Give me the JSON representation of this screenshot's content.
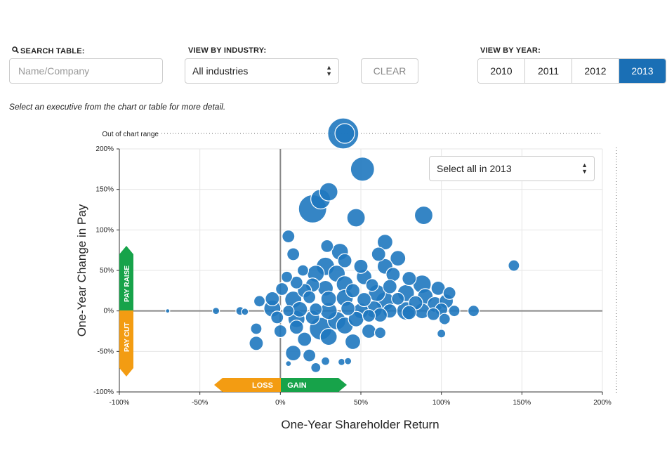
{
  "controls": {
    "search_label": "SEARCH TABLE:",
    "search_placeholder": "Name/Company",
    "industry_label": "VIEW BY INDUSTRY:",
    "industry_value": "All industries",
    "clear_label": "CLEAR",
    "year_label": "VIEW BY YEAR:",
    "years": [
      "2010",
      "2011",
      "2012",
      "2013"
    ],
    "active_year": "2013",
    "hint": "Select an executive from the chart or table for more detail.",
    "select_all_label": "Select all in 2013"
  },
  "colors": {
    "bubble": "#1f78bf",
    "bubble_stroke": "#ffffff",
    "raise": "#17a34a",
    "cut": "#f39c12",
    "active_year": "#1a6fb5"
  },
  "chart_data": {
    "type": "scatter",
    "title": "",
    "xlabel": "One-Year Shareholder Return",
    "ylabel": "One-Year Change in Pay",
    "xlim": [
      -100,
      200
    ],
    "ylim": [
      -100,
      200
    ],
    "x_ticks": [
      "-100%",
      "-50%",
      "0%",
      "50%",
      "100%",
      "150%",
      "200%"
    ],
    "y_ticks": [
      "-100%",
      "-50%",
      "0%",
      "50%",
      "100%",
      "150%",
      "200%"
    ],
    "grid": true,
    "out_of_range_label": "Out of chart range",
    "annotations": {
      "pay_raise": "PAY RAISE",
      "pay_cut": "PAY CUT",
      "loss": "LOSS",
      "gain": "GAIN"
    },
    "bubble_size_meaning": "relative size (unlabeled)",
    "points": [
      {
        "x": 39,
        "y": 222,
        "size": 22
      },
      {
        "x": 40,
        "y": 220,
        "size": 14
      },
      {
        "x": 51,
        "y": 175,
        "size": 17
      },
      {
        "x": 30,
        "y": 147,
        "size": 13
      },
      {
        "x": 20,
        "y": 126,
        "size": 20
      },
      {
        "x": 25,
        "y": 138,
        "size": 14
      },
      {
        "x": 47,
        "y": 115,
        "size": 13
      },
      {
        "x": 89,
        "y": 118,
        "size": 13
      },
      {
        "x": 5,
        "y": 92,
        "size": 9
      },
      {
        "x": 65,
        "y": 85,
        "size": 11
      },
      {
        "x": 61,
        "y": 70,
        "size": 10
      },
      {
        "x": 73,
        "y": 65,
        "size": 11
      },
      {
        "x": 29,
        "y": 80,
        "size": 9
      },
      {
        "x": 37,
        "y": 73,
        "size": 12
      },
      {
        "x": 8,
        "y": 70,
        "size": 9
      },
      {
        "x": 40,
        "y": 62,
        "size": 10
      },
      {
        "x": 145,
        "y": 56,
        "size": 8
      },
      {
        "x": 28,
        "y": 55,
        "size": 13
      },
      {
        "x": 50,
        "y": 55,
        "size": 10
      },
      {
        "x": 65,
        "y": 55,
        "size": 11
      },
      {
        "x": 14,
        "y": 50,
        "size": 8
      },
      {
        "x": 22,
        "y": 46,
        "size": 12
      },
      {
        "x": 35,
        "y": 46,
        "size": 12
      },
      {
        "x": 52,
        "y": 42,
        "size": 11
      },
      {
        "x": 70,
        "y": 45,
        "size": 10
      },
      {
        "x": 4,
        "y": 42,
        "size": 8
      },
      {
        "x": 80,
        "y": 40,
        "size": 10
      },
      {
        "x": 88,
        "y": 33,
        "size": 13
      },
      {
        "x": 10,
        "y": 35,
        "size": 9
      },
      {
        "x": 20,
        "y": 32,
        "size": 10
      },
      {
        "x": 40,
        "y": 33,
        "size": 12
      },
      {
        "x": 57,
        "y": 32,
        "size": 9
      },
      {
        "x": 68,
        "y": 30,
        "size": 10
      },
      {
        "x": 98,
        "y": 28,
        "size": 10
      },
      {
        "x": 105,
        "y": 22,
        "size": 9
      },
      {
        "x": 1,
        "y": 27,
        "size": 9
      },
      {
        "x": 15,
        "y": 25,
        "size": 10
      },
      {
        "x": 28,
        "y": 28,
        "size": 11
      },
      {
        "x": 45,
        "y": 25,
        "size": 10
      },
      {
        "x": 60,
        "y": 22,
        "size": 12
      },
      {
        "x": 78,
        "y": 22,
        "size": 12
      },
      {
        "x": 90,
        "y": 18,
        "size": 11
      },
      {
        "x": 103,
        "y": 12,
        "size": 10
      },
      {
        "x": -13,
        "y": 12,
        "size": 8
      },
      {
        "x": -5,
        "y": 15,
        "size": 10
      },
      {
        "x": 8,
        "y": 14,
        "size": 12
      },
      {
        "x": 18,
        "y": 17,
        "size": 9
      },
      {
        "x": 30,
        "y": 15,
        "size": 11
      },
      {
        "x": 40,
        "y": 16,
        "size": 12
      },
      {
        "x": 52,
        "y": 14,
        "size": 10
      },
      {
        "x": 65,
        "y": 12,
        "size": 13
      },
      {
        "x": 73,
        "y": 15,
        "size": 9
      },
      {
        "x": 84,
        "y": 10,
        "size": 10
      },
      {
        "x": 96,
        "y": 8,
        "size": 11
      },
      {
        "x": 108,
        "y": 0,
        "size": 8
      },
      {
        "x": 120,
        "y": 0,
        "size": 8
      },
      {
        "x": -70,
        "y": 0,
        "size": 3
      },
      {
        "x": -40,
        "y": 0,
        "size": 5
      },
      {
        "x": -25,
        "y": 0,
        "size": 6
      },
      {
        "x": -22,
        "y": -1,
        "size": 5
      },
      {
        "x": -5,
        "y": 3,
        "size": 12
      },
      {
        "x": 5,
        "y": 0,
        "size": 8
      },
      {
        "x": 12,
        "y": 2,
        "size": 11
      },
      {
        "x": 22,
        "y": 2,
        "size": 9
      },
      {
        "x": 30,
        "y": 0,
        "size": 12
      },
      {
        "x": 42,
        "y": 3,
        "size": 10
      },
      {
        "x": 50,
        "y": 0,
        "size": 11
      },
      {
        "x": 58,
        "y": 2,
        "size": 12
      },
      {
        "x": 68,
        "y": 0,
        "size": 10
      },
      {
        "x": 78,
        "y": 0,
        "size": 13
      },
      {
        "x": 88,
        "y": 0,
        "size": 11
      },
      {
        "x": 100,
        "y": 2,
        "size": 9
      },
      {
        "x": -2,
        "y": -8,
        "size": 9
      },
      {
        "x": 10,
        "y": -10,
        "size": 12
      },
      {
        "x": 20,
        "y": -8,
        "size": 10
      },
      {
        "x": 35,
        "y": -12,
        "size": 13
      },
      {
        "x": 47,
        "y": -10,
        "size": 11
      },
      {
        "x": 55,
        "y": -6,
        "size": 9
      },
      {
        "x": 62,
        "y": -5,
        "size": 10
      },
      {
        "x": 80,
        "y": -2,
        "size": 10
      },
      {
        "x": 95,
        "y": -4,
        "size": 9
      },
      {
        "x": 102,
        "y": -10,
        "size": 8
      },
      {
        "x": 0,
        "y": -25,
        "size": 9
      },
      {
        "x": 10,
        "y": -20,
        "size": 10
      },
      {
        "x": 25,
        "y": -22,
        "size": 16
      },
      {
        "x": 40,
        "y": -18,
        "size": 12
      },
      {
        "x": 55,
        "y": -25,
        "size": 10
      },
      {
        "x": 62,
        "y": -27,
        "size": 8
      },
      {
        "x": 100,
        "y": -28,
        "size": 6
      },
      {
        "x": 15,
        "y": -35,
        "size": 10
      },
      {
        "x": 30,
        "y": -32,
        "size": 12
      },
      {
        "x": 45,
        "y": -38,
        "size": 11
      },
      {
        "x": -15,
        "y": -22,
        "size": 8
      },
      {
        "x": -15,
        "y": -40,
        "size": 10
      },
      {
        "x": 8,
        "y": -52,
        "size": 11
      },
      {
        "x": 18,
        "y": -55,
        "size": 9
      },
      {
        "x": 28,
        "y": -62,
        "size": 6
      },
      {
        "x": 22,
        "y": -70,
        "size": 7
      },
      {
        "x": 38,
        "y": -63,
        "size": 5
      },
      {
        "x": 42,
        "y": -62,
        "size": 5
      },
      {
        "x": 5,
        "y": -65,
        "size": 4
      }
    ]
  }
}
